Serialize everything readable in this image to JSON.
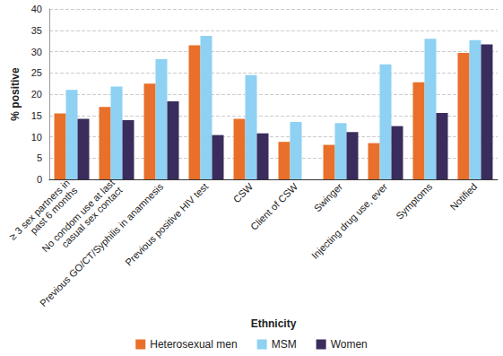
{
  "chart_data": {
    "type": "bar",
    "x_label": "Ethnicity",
    "y_label": "% positive",
    "categories": [
      "≥ 3 sex partners in\npast 6 months",
      "No condom use at last\ncasual sex contact",
      "Previous GO/CT/Syphilis in anamnesis",
      "Previous positive HIV test",
      "CSW",
      "Client of CSW",
      "Swinger",
      "Injecting drug use, ever",
      "Symptoms",
      "Notified"
    ],
    "series": [
      {
        "name": "Heterosexual men",
        "color": "#e8702a",
        "values": [
          15.5,
          17.0,
          22.5,
          31.5,
          14.2,
          8.8,
          8.1,
          8.5,
          22.8,
          29.7
        ]
      },
      {
        "name": "MSM",
        "color": "#8ed1f2",
        "values": [
          21.0,
          21.8,
          28.2,
          33.7,
          24.5,
          13.5,
          13.2,
          27.0,
          33.0,
          32.7
        ]
      },
      {
        "name": "Women",
        "color": "#3a2c5c",
        "values": [
          14.2,
          13.9,
          18.3,
          10.4,
          10.8,
          null,
          11.1,
          12.5,
          15.6,
          31.7
        ]
      }
    ],
    "ylim": [
      0,
      40
    ],
    "yticks": [
      0,
      5,
      10,
      15,
      20,
      25,
      30,
      35,
      40
    ],
    "grid": true,
    "legend": "bottom"
  }
}
